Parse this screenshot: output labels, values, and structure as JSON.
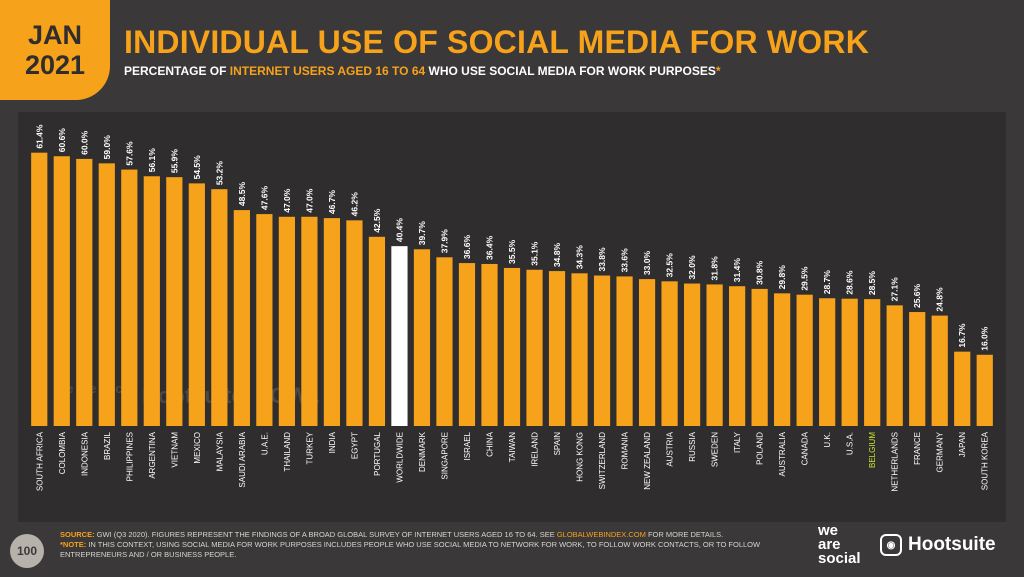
{
  "header": {
    "month": "JAN",
    "year": "2021",
    "title": "INDIVIDUAL USE OF SOCIAL MEDIA FOR WORK",
    "subtitle_pre": "PERCENTAGE OF ",
    "subtitle_highlight": "INTERNET USERS AGED 16 TO 64",
    "subtitle_post": " WHO USE SOCIAL MEDIA FOR WORK PURPOSES",
    "subtitle_asterisk": "*"
  },
  "watermarks": {
    "we_are_social": "we are social",
    "hootsuite": "Hootsuite",
    "gwi": "GWI."
  },
  "colors": {
    "accent": "#f7a21b",
    "background": "#3a3838",
    "panel": "#2f2d2d",
    "highlight_bar": "#ffffff",
    "highlight_label": "#c8e62f"
  },
  "chart_data": {
    "type": "bar",
    "categories": [
      "SOUTH AFRICA",
      "COLOMBIA",
      "INDONESIA",
      "BRAZIL",
      "PHILIPPINES",
      "ARGENTINA",
      "VIETNAM",
      "MEXICO",
      "MALAYSIA",
      "SAUDI ARABIA",
      "U.A.E.",
      "THAILAND",
      "TURKEY",
      "INDIA",
      "EGYPT",
      "PORTUGAL",
      "WORLDWIDE",
      "DENMARK",
      "SINGAPORE",
      "ISRAEL",
      "CHINA",
      "TAIWAN",
      "IRELAND",
      "SPAIN",
      "HONG KONG",
      "SWITZERLAND",
      "ROMANIA",
      "NEW ZEALAND",
      "AUSTRIA",
      "RUSSIA",
      "SWEDEN",
      "ITALY",
      "POLAND",
      "AUSTRALIA",
      "CANADA",
      "U.K.",
      "U.S.A.",
      "BELGIUM",
      "NETHERLANDS",
      "FRANCE",
      "GERMANY",
      "JAPAN",
      "SOUTH KOREA"
    ],
    "values": [
      61.4,
      60.6,
      60.0,
      59.0,
      57.6,
      56.1,
      55.9,
      54.5,
      53.2,
      48.5,
      47.6,
      47.0,
      47.0,
      46.7,
      46.2,
      42.5,
      40.4,
      39.7,
      37.9,
      36.6,
      36.4,
      35.5,
      35.1,
      34.8,
      34.3,
      33.8,
      33.6,
      33.0,
      32.5,
      32.0,
      31.8,
      31.4,
      30.8,
      29.8,
      29.5,
      28.7,
      28.6,
      28.5,
      27.1,
      25.6,
      24.8,
      16.7,
      16.0
    ],
    "value_labels": [
      "61.4%",
      "60.6%",
      "60.0%",
      "59.0%",
      "57.6%",
      "56.1%",
      "55.9%",
      "54.5%",
      "53.2%",
      "48.5%",
      "47.6%",
      "47.0%",
      "47.0%",
      "46.7%",
      "46.2%",
      "42.5%",
      "40.4%",
      "39.7%",
      "37.9%",
      "36.6%",
      "36.4%",
      "35.5%",
      "35.1%",
      "34.8%",
      "34.3%",
      "33.8%",
      "33.6%",
      "33.0%",
      "32.5%",
      "32.0%",
      "31.8%",
      "31.4%",
      "30.8%",
      "29.8%",
      "29.5%",
      "28.7%",
      "28.6%",
      "28.5%",
      "27.1%",
      "25.6%",
      "24.8%",
      "16.7%",
      "16.0%"
    ],
    "highlight_bar": "WORLDWIDE",
    "highlight_label": "BELGIUM",
    "ylim": [
      0,
      62
    ],
    "grid": false,
    "legend": "none"
  },
  "footer": {
    "page_number": "100",
    "source_label": "SOURCE:",
    "source_text": " GWI (Q3 2020). FIGURES REPRESENT THE FINDINGS OF A BROAD GLOBAL SURVEY OF INTERNET USERS AGED 16 TO 64. SEE ",
    "source_link": "GLOBALWEBINDEX.COM",
    "source_tail": " FOR MORE DETAILS.",
    "note_label": "*NOTE:",
    "note_text": " IN THIS CONTEXT, USING SOCIAL MEDIA FOR WORK PURPOSES INCLUDES PEOPLE WHO USE SOCIAL MEDIA TO NETWORK FOR WORK, TO FOLLOW WORK CONTACTS, OR TO FOLLOW ENTREPRENEURS AND / OR BUSINESS PEOPLE.",
    "logo_we": "we",
    "logo_are": "are",
    "logo_social": "social",
    "logo_hootsuite": "Hootsuite",
    "logo_hootsuite_icon": "owl-icon"
  }
}
